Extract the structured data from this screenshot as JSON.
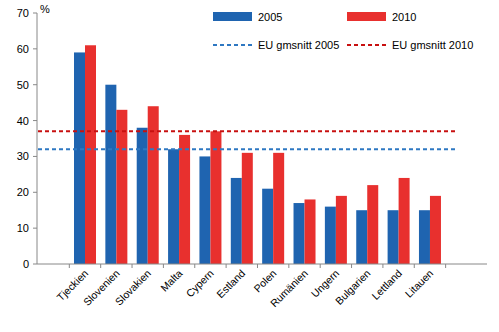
{
  "chart_data": {
    "type": "bar",
    "y_label": "%",
    "categories": [
      "Tjeckien",
      "Slovenien",
      "Slovakien",
      "Malta",
      "Cypern",
      "Estland",
      "Polen",
      "Rumänien",
      "Ungern",
      "Bulgarien",
      "Lettland",
      "Litauen"
    ],
    "series": [
      {
        "name": "2005",
        "type": "bar",
        "color": "#1f64b0",
        "values": [
          59,
          50,
          38,
          32,
          30,
          24,
          21,
          17,
          16,
          15,
          15,
          15
        ]
      },
      {
        "name": "2010",
        "type": "bar",
        "color": "#e8302e",
        "values": [
          61,
          43,
          44,
          36,
          37,
          31,
          31,
          18,
          19,
          22,
          24,
          19
        ]
      },
      {
        "name": "EU gmsnitt 2005",
        "type": "line",
        "line_style": "dashed",
        "color": "#2e78c2",
        "values": [
          32,
          32,
          32,
          32,
          32,
          32,
          32,
          32,
          32,
          32,
          32,
          32
        ]
      },
      {
        "name": "EU gmsnitt 2010",
        "type": "line",
        "line_style": "dashed",
        "color": "#c81010",
        "values": [
          37,
          37,
          37,
          37,
          37,
          37,
          37,
          37,
          37,
          37,
          37,
          37
        ]
      }
    ],
    "ylim": [
      0,
      70
    ],
    "yticks": [
      0,
      10,
      20,
      30,
      40,
      50,
      60,
      70
    ],
    "grid": false,
    "legend": "top"
  }
}
